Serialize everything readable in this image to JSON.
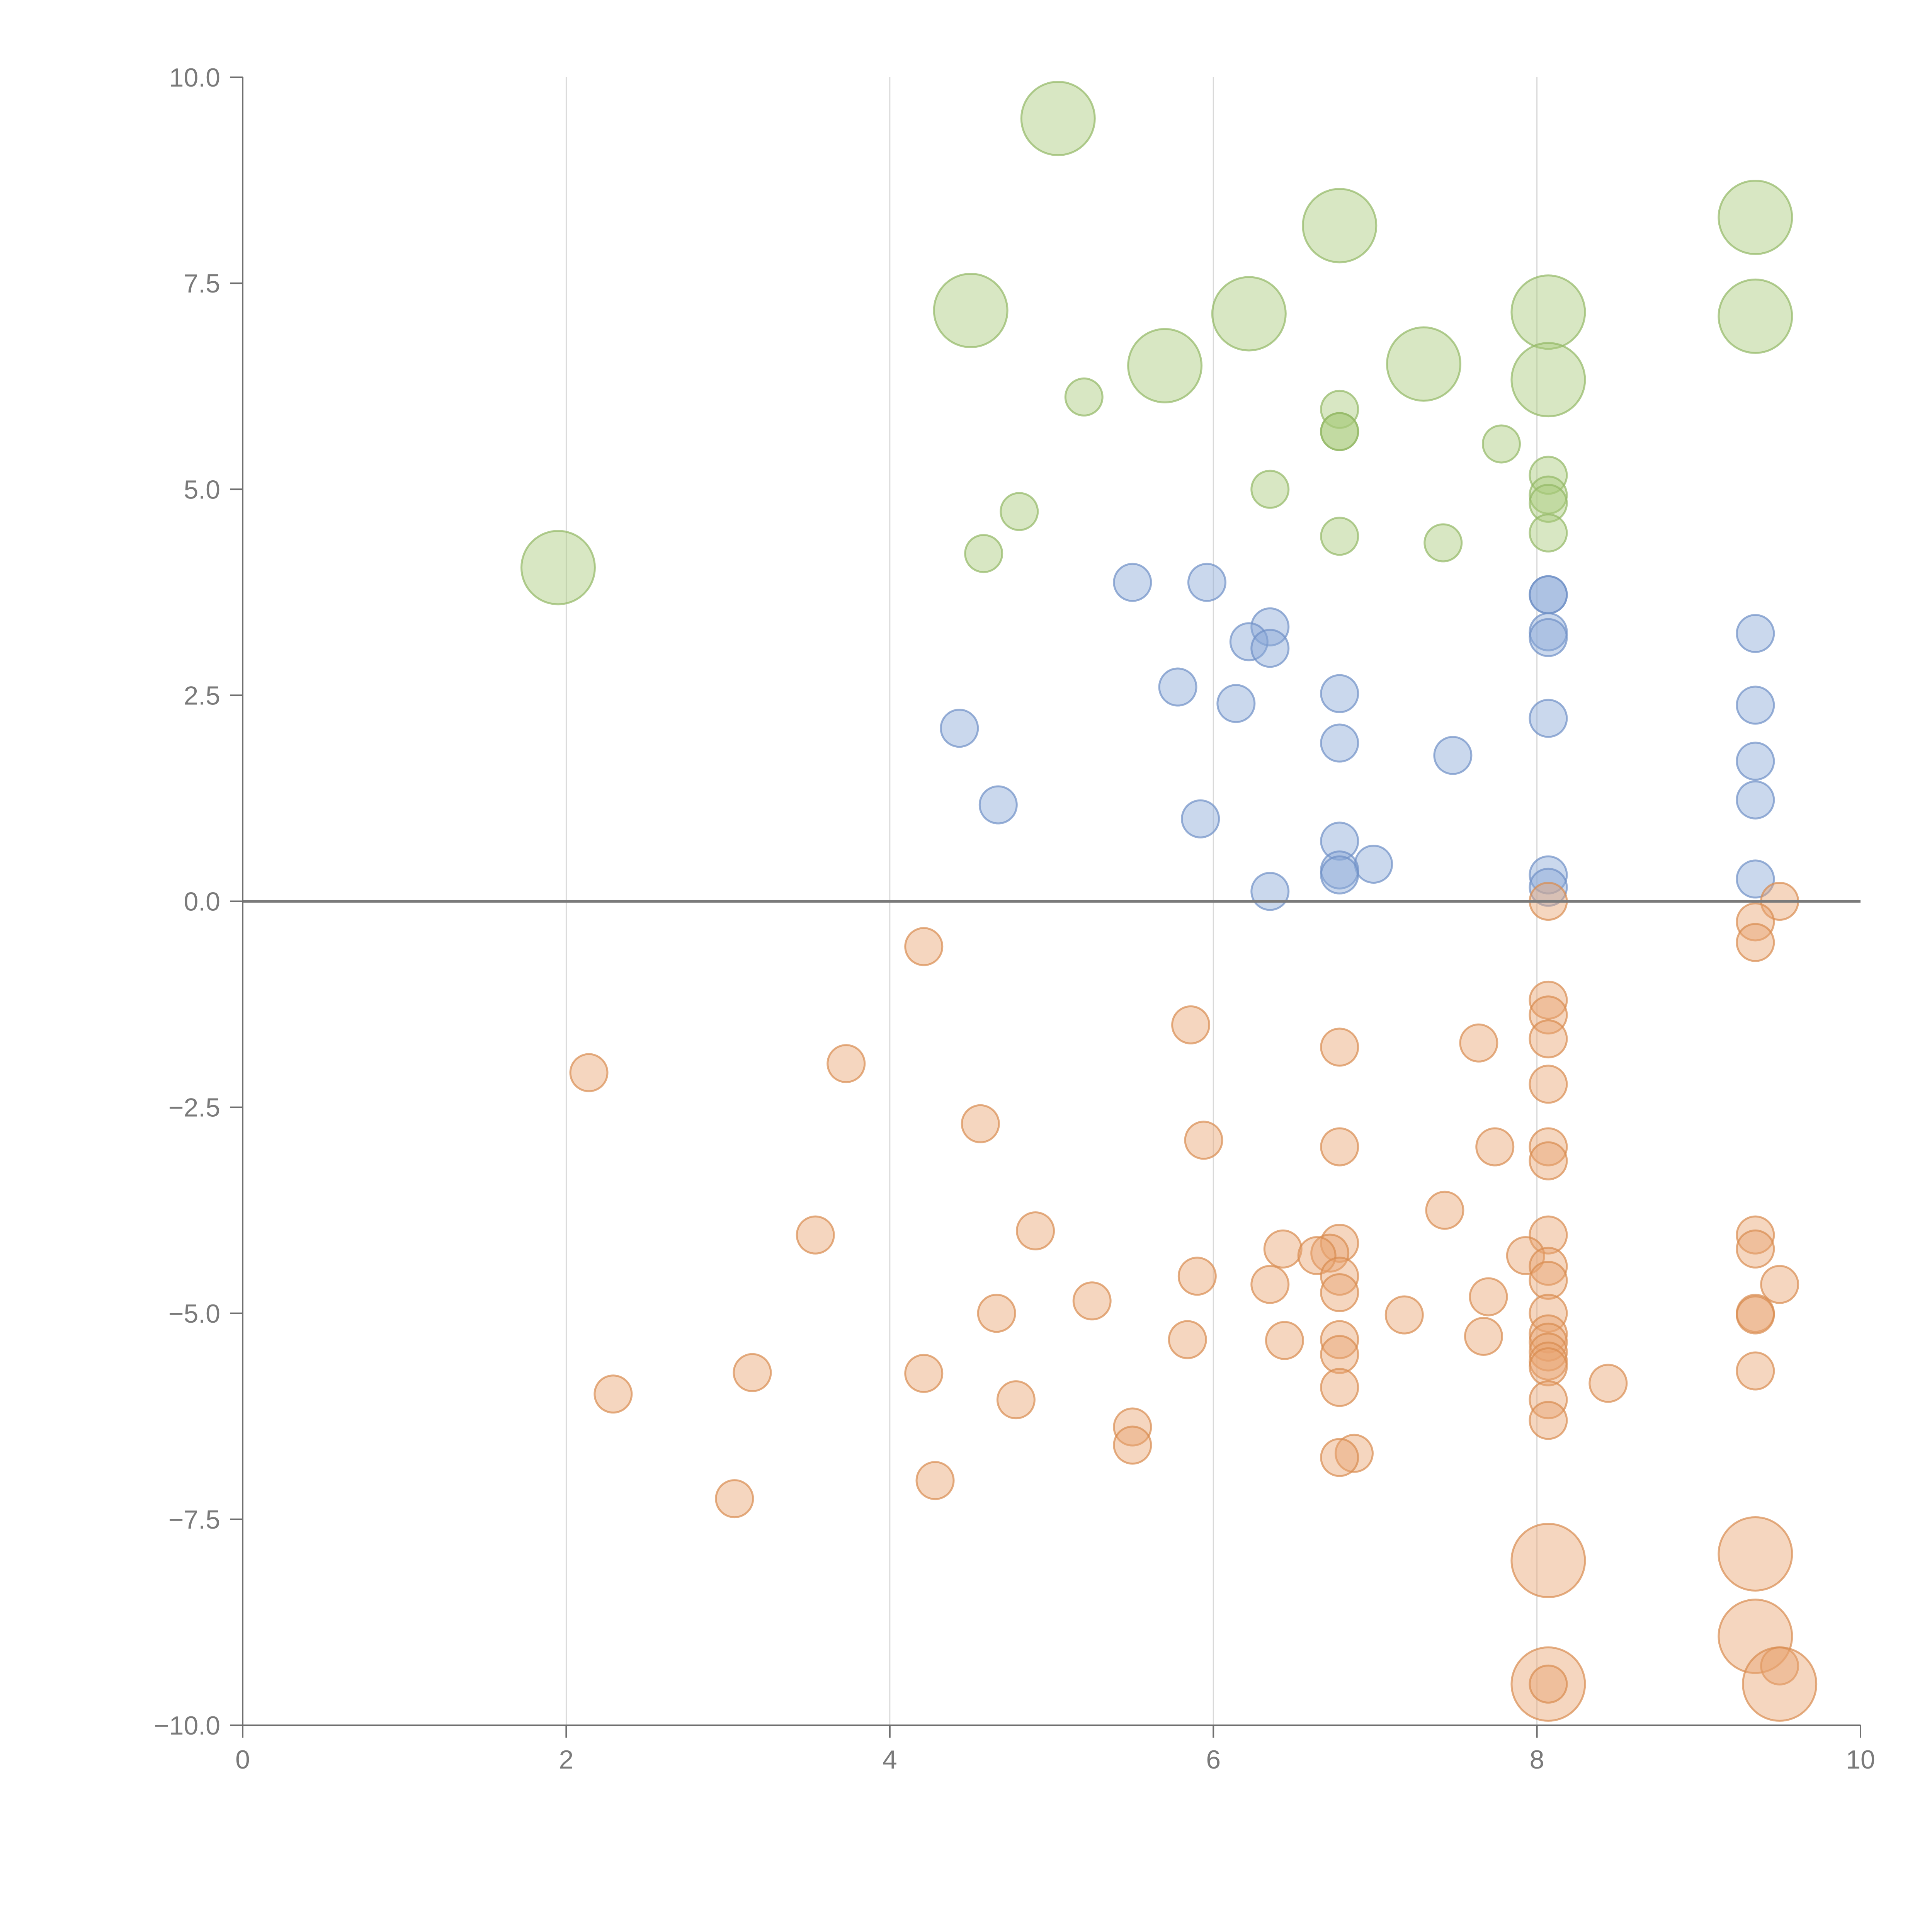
{
  "chart_data": {
    "type": "scatter",
    "title": "",
    "xlabel": "",
    "ylabel": "",
    "xlim": [
      0,
      10
    ],
    "ylim": [
      -10,
      10
    ],
    "x_ticks": [
      0,
      2,
      4,
      6,
      8,
      10
    ],
    "x_tick_labels": [
      "0",
      "2",
      "4",
      "6",
      "8",
      "10"
    ],
    "y_ticks": [
      10,
      7.5,
      5,
      2.5,
      0,
      -2.5,
      -5,
      -7.5,
      -10
    ],
    "y_tick_labels": [
      "10.0",
      "7.5",
      "5.0",
      "2.5",
      "0.0",
      "−2.5",
      "−5.0",
      "−7.5",
      "−10.0"
    ],
    "grid": "vertical",
    "reference_line_y": 0,
    "series": [
      {
        "name": "green",
        "color": "#a9c97a",
        "stroke": "#93b865",
        "points": [
          [
            5.04,
            9.5,
            "L"
          ],
          [
            6.78,
            8.2,
            "L"
          ],
          [
            9.35,
            8.3,
            "L"
          ],
          [
            4.5,
            7.17,
            "L"
          ],
          [
            6.22,
            7.13,
            "L"
          ],
          [
            8.07,
            7.15,
            "L"
          ],
          [
            9.35,
            7.1,
            "L"
          ],
          [
            5.7,
            6.5,
            "L"
          ],
          [
            7.3,
            6.52,
            "L"
          ],
          [
            8.07,
            6.33,
            "L"
          ],
          [
            1.95,
            4.05,
            "L"
          ],
          [
            5.2,
            6.12,
            "S"
          ],
          [
            6.78,
            5.97,
            "S"
          ],
          [
            6.78,
            5.7,
            "S"
          ],
          [
            6.78,
            5.7,
            "S"
          ],
          [
            7.78,
            5.55,
            "S"
          ],
          [
            8.07,
            5.17,
            "S"
          ],
          [
            4.8,
            4.73,
            "S"
          ],
          [
            6.35,
            5.0,
            "S"
          ],
          [
            8.07,
            4.93,
            "S"
          ],
          [
            8.07,
            4.83,
            "S"
          ],
          [
            4.58,
            4.22,
            "S"
          ],
          [
            6.78,
            4.43,
            "S"
          ],
          [
            7.42,
            4.35,
            "S"
          ],
          [
            8.07,
            4.47,
            "S"
          ]
        ]
      },
      {
        "name": "blue",
        "color": "#8aa8d6",
        "stroke": "#6f90c6",
        "points": [
          [
            5.5,
            3.87,
            "S"
          ],
          [
            5.96,
            3.87,
            "S"
          ],
          [
            8.07,
            3.72,
            "S"
          ],
          [
            8.07,
            3.72,
            "S"
          ],
          [
            6.35,
            3.33,
            "S"
          ],
          [
            6.22,
            3.15,
            "S"
          ],
          [
            6.35,
            3.07,
            "S"
          ],
          [
            8.07,
            3.27,
            "S"
          ],
          [
            8.07,
            3.2,
            "S"
          ],
          [
            9.35,
            3.25,
            "S"
          ],
          [
            5.78,
            2.6,
            "S"
          ],
          [
            6.78,
            2.52,
            "S"
          ],
          [
            6.14,
            2.4,
            "S"
          ],
          [
            9.35,
            2.38,
            "S"
          ],
          [
            8.07,
            2.22,
            "S"
          ],
          [
            4.43,
            2.1,
            "S"
          ],
          [
            6.78,
            1.92,
            "S"
          ],
          [
            7.48,
            1.77,
            "S"
          ],
          [
            9.35,
            1.7,
            "S"
          ],
          [
            4.67,
            1.17,
            "S"
          ],
          [
            9.35,
            1.23,
            "S"
          ],
          [
            5.92,
            1.0,
            "S"
          ],
          [
            6.78,
            0.73,
            "S"
          ],
          [
            6.99,
            0.45,
            "S"
          ],
          [
            6.78,
            0.38,
            "S"
          ],
          [
            6.78,
            0.32,
            "S"
          ],
          [
            8.07,
            0.32,
            "S"
          ],
          [
            9.35,
            0.27,
            "S"
          ],
          [
            8.07,
            0.17,
            "S"
          ],
          [
            6.35,
            0.12,
            "S"
          ]
        ]
      },
      {
        "name": "orange",
        "color": "#e8a572",
        "stroke": "#d98b50",
        "points": [
          [
            8.07,
            0.0,
            "S"
          ],
          [
            9.5,
            0.0,
            "S"
          ],
          [
            9.35,
            -0.25,
            "S"
          ],
          [
            9.35,
            -0.5,
            "S"
          ],
          [
            4.21,
            -0.55,
            "S"
          ],
          [
            8.07,
            -1.2,
            "S"
          ],
          [
            8.07,
            -1.38,
            "S"
          ],
          [
            5.86,
            -1.5,
            "S"
          ],
          [
            8.07,
            -1.67,
            "S"
          ],
          [
            7.64,
            -1.72,
            "S"
          ],
          [
            6.78,
            -1.77,
            "S"
          ],
          [
            3.73,
            -1.97,
            "S"
          ],
          [
            2.14,
            -2.08,
            "S"
          ],
          [
            8.07,
            -2.22,
            "S"
          ],
          [
            4.56,
            -2.7,
            "S"
          ],
          [
            5.94,
            -2.9,
            "S"
          ],
          [
            6.78,
            -2.98,
            "S"
          ],
          [
            7.74,
            -2.98,
            "S"
          ],
          [
            8.07,
            -2.98,
            "S"
          ],
          [
            8.07,
            -3.15,
            "S"
          ],
          [
            7.43,
            -3.75,
            "S"
          ],
          [
            3.54,
            -4.05,
            "S"
          ],
          [
            4.9,
            -4.0,
            "S"
          ],
          [
            8.07,
            -4.05,
            "S"
          ],
          [
            9.35,
            -4.05,
            "S"
          ],
          [
            6.78,
            -4.15,
            "S"
          ],
          [
            6.43,
            -4.22,
            "S"
          ],
          [
            6.72,
            -4.27,
            "S"
          ],
          [
            9.35,
            -4.22,
            "S"
          ],
          [
            6.64,
            -4.3,
            "S"
          ],
          [
            7.93,
            -4.3,
            "S"
          ],
          [
            8.07,
            -4.43,
            "S"
          ],
          [
            5.9,
            -4.55,
            "S"
          ],
          [
            6.78,
            -4.55,
            "S"
          ],
          [
            8.07,
            -4.6,
            "S"
          ],
          [
            6.35,
            -4.65,
            "S"
          ],
          [
            9.5,
            -4.65,
            "S"
          ],
          [
            6.78,
            -4.75,
            "S"
          ],
          [
            7.7,
            -4.8,
            "S"
          ],
          [
            5.25,
            -4.85,
            "S"
          ],
          [
            4.66,
            -5.0,
            "S"
          ],
          [
            7.18,
            -5.02,
            "S"
          ],
          [
            8.07,
            -5.0,
            "S"
          ],
          [
            9.35,
            -5.0,
            "S"
          ],
          [
            9.35,
            -5.02,
            "S"
          ],
          [
            8.07,
            -5.25,
            "S"
          ],
          [
            6.44,
            -5.33,
            "S"
          ],
          [
            5.84,
            -5.32,
            "S"
          ],
          [
            6.78,
            -5.32,
            "S"
          ],
          [
            7.67,
            -5.28,
            "S"
          ],
          [
            8.07,
            -5.35,
            "S"
          ],
          [
            8.07,
            -5.47,
            "S"
          ],
          [
            6.78,
            -5.5,
            "S"
          ],
          [
            8.07,
            -5.58,
            "S"
          ],
          [
            8.07,
            -5.65,
            "S"
          ],
          [
            3.15,
            -5.72,
            "S"
          ],
          [
            4.21,
            -5.73,
            "S"
          ],
          [
            9.35,
            -5.7,
            "S"
          ],
          [
            8.44,
            -5.85,
            "S"
          ],
          [
            6.78,
            -5.9,
            "S"
          ],
          [
            2.29,
            -5.98,
            "S"
          ],
          [
            4.78,
            -6.05,
            "S"
          ],
          [
            8.07,
            -6.05,
            "S"
          ],
          [
            8.07,
            -6.3,
            "S"
          ],
          [
            5.5,
            -6.38,
            "S"
          ],
          [
            5.5,
            -6.6,
            "S"
          ],
          [
            6.87,
            -6.7,
            "S"
          ],
          [
            6.78,
            -6.75,
            "S"
          ],
          [
            4.28,
            -7.03,
            "S"
          ],
          [
            3.04,
            -7.25,
            "S"
          ],
          [
            8.07,
            -8.0,
            "L"
          ],
          [
            9.35,
            -7.92,
            "L"
          ],
          [
            9.35,
            -8.92,
            "L"
          ],
          [
            9.5,
            -9.28,
            "S"
          ],
          [
            8.07,
            -9.5,
            "L"
          ],
          [
            8.07,
            -9.5,
            "S"
          ],
          [
            9.5,
            -9.5,
            "L"
          ]
        ]
      }
    ]
  }
}
